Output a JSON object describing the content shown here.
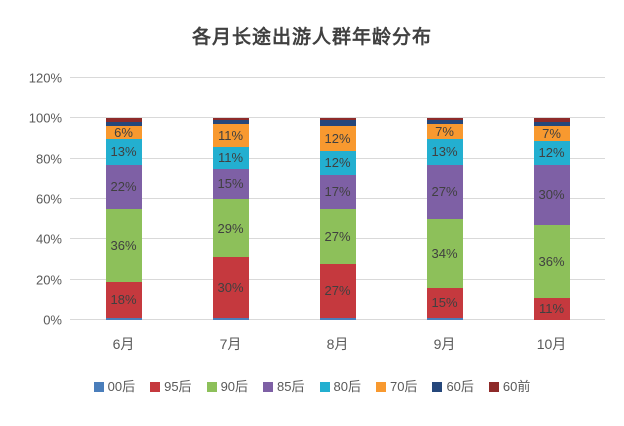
{
  "title": "各月长途出游人群年龄分布",
  "chart_data": {
    "type": "bar",
    "stacked": true,
    "title": "各月长途出游人群年龄分布",
    "xlabel": "",
    "ylabel": "",
    "categories": [
      "6月",
      "7月",
      "8月",
      "9月",
      "10月"
    ],
    "series": [
      {
        "name": "00后",
        "color": "#4A7EBB",
        "values": [
          1,
          1,
          1,
          1,
          0
        ]
      },
      {
        "name": "95后",
        "color": "#C5393E",
        "values": [
          18,
          30,
          27,
          15,
          11
        ]
      },
      {
        "name": "90后",
        "color": "#8DC05A",
        "values": [
          36,
          29,
          27,
          34,
          36
        ]
      },
      {
        "name": "85后",
        "color": "#7E60A5",
        "values": [
          22,
          15,
          17,
          27,
          30
        ]
      },
      {
        "name": "80后",
        "color": "#23AFD0",
        "values": [
          13,
          11,
          12,
          13,
          12
        ]
      },
      {
        "name": "70后",
        "color": "#F8992F",
        "values": [
          6,
          11,
          12,
          7,
          7
        ]
      },
      {
        "name": "60后",
        "color": "#25477B",
        "values": [
          2,
          2,
          3,
          2,
          2
        ]
      },
      {
        "name": "60前",
        "color": "#8E2A29",
        "values": [
          2,
          1,
          1,
          1,
          2
        ]
      }
    ],
    "ylim": [
      0,
      120
    ],
    "yticks": [
      0,
      20,
      40,
      60,
      80,
      100,
      120
    ],
    "ytick_suffix": "%",
    "grid": true,
    "legend_position": "bottom",
    "data_label_suffix": "%",
    "data_label_min_value": 6
  },
  "colors": {
    "background": "#FFFFFF",
    "grid": "#D9D9D9",
    "axis_text": "#595959",
    "title_text": "#404040",
    "label_text": "#404040"
  }
}
